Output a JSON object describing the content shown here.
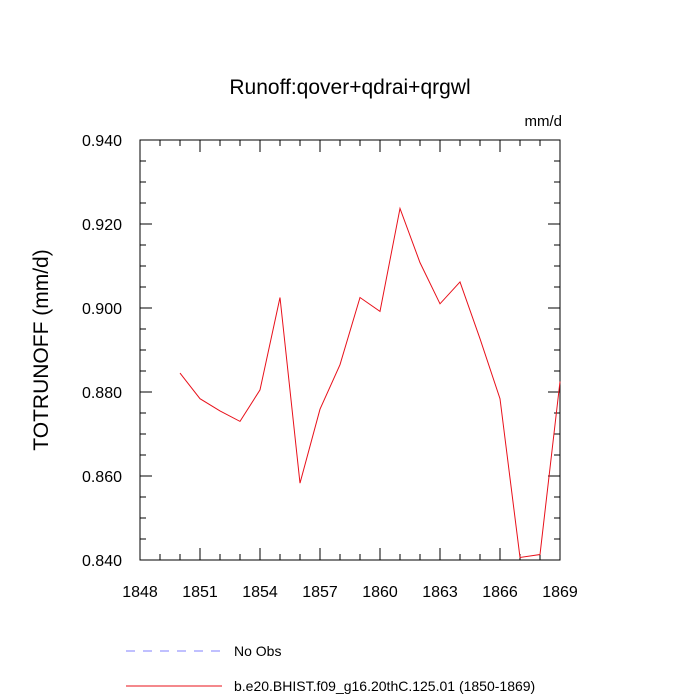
{
  "chart_data": {
    "type": "line",
    "title": "Runoff:qover+qdrai+qrgwl",
    "units_label": "mm/d",
    "ylabel": "TOTRUNOFF  (mm/d)",
    "xlabel": "",
    "xlim": [
      1848,
      1869
    ],
    "ylim": [
      0.84,
      0.94
    ],
    "x_ticks": [
      1848,
      1851,
      1854,
      1857,
      1860,
      1863,
      1866,
      1869
    ],
    "y_ticks": [
      0.84,
      0.86,
      0.88,
      0.9,
      0.92,
      0.94
    ],
    "y_tick_labels": [
      "0.840",
      "0.860",
      "0.880",
      "0.900",
      "0.920",
      "0.940"
    ],
    "grid": false,
    "legend_position": "bottom",
    "series": [
      {
        "name": "No Obs",
        "color": "#8080ff",
        "dash": "dashed",
        "x": [],
        "values": []
      },
      {
        "name": "b.e20.BHIST.f09_g16.20thC.125.01 (1850-1869)",
        "color": "#e8101a",
        "dash": "solid",
        "x": [
          1850,
          1851,
          1852,
          1853,
          1854,
          1855,
          1856,
          1857,
          1858,
          1859,
          1860,
          1861,
          1862,
          1863,
          1864,
          1865,
          1866,
          1867,
          1868,
          1869
        ],
        "values": [
          0.8845,
          0.8784,
          0.8755,
          0.873,
          0.8805,
          0.9025,
          0.8583,
          0.8759,
          0.8865,
          0.9025,
          0.8992,
          0.9237,
          0.9108,
          0.901,
          0.9062,
          0.8927,
          0.8784,
          0.8406,
          0.8413,
          0.8825
        ]
      }
    ]
  }
}
